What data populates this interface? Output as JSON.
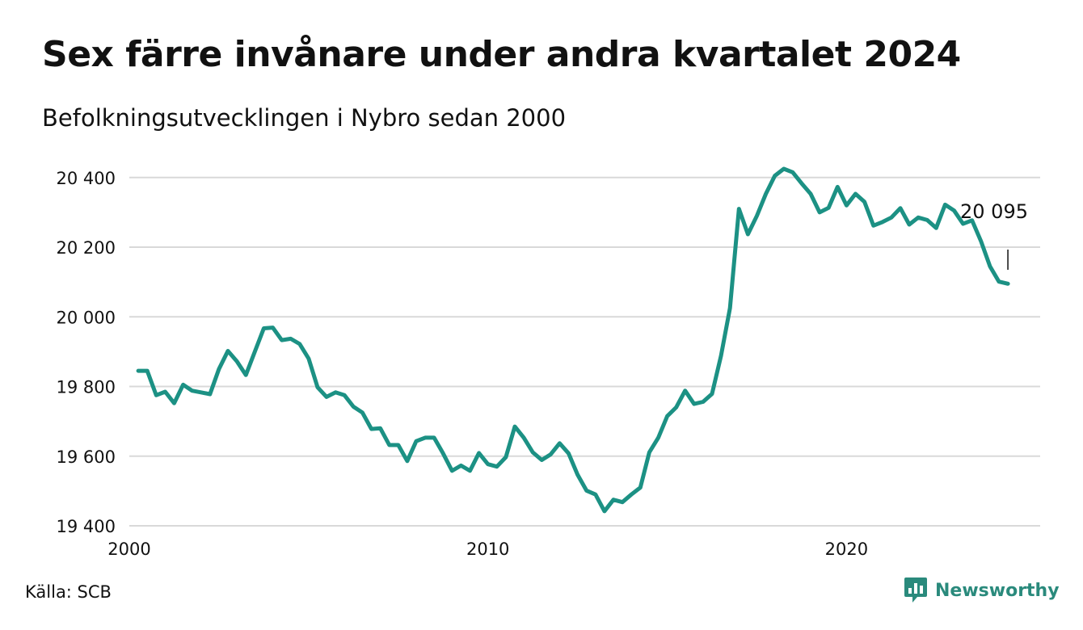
{
  "title": "Sex färre invånare under andra kvartalet 2024",
  "subtitle": "Befolkningsutvecklingen i Nybro sedan 2000",
  "source": "Källa: SCB",
  "brand": "Newsworthy",
  "colors": {
    "line": "#1c9184",
    "grid": "#d9d9d9",
    "brand": "#2a8a7c"
  },
  "chart_data": {
    "type": "line",
    "title": "Sex färre invånare under andra kvartalet 2024",
    "subtitle": "Befolkningsutvecklingen i Nybro sedan 2000",
    "xlabel": "",
    "ylabel": "",
    "xlim": [
      2000,
      2025.4
    ],
    "ylim": [
      19400,
      20420
    ],
    "x_ticks": [
      2000,
      2010,
      2020
    ],
    "x_tick_labels": [
      "2000",
      "2010",
      "2020"
    ],
    "y_ticks": [
      19400,
      19600,
      19800,
      20000,
      20200,
      20400
    ],
    "y_tick_labels": [
      "19 400",
      "19 600",
      "19 800",
      "20 000",
      "20 200",
      "20 400"
    ],
    "grid": true,
    "end_label": "20 095",
    "series": [
      {
        "values": [
          [
            2000.25,
            19845
          ],
          [
            2000.5,
            19845
          ],
          [
            2000.75,
            19775
          ],
          [
            2001.0,
            19785
          ],
          [
            2001.25,
            19752
          ],
          [
            2001.5,
            19805
          ],
          [
            2001.75,
            19788
          ],
          [
            2002.0,
            19783
          ],
          [
            2002.25,
            19778
          ],
          [
            2002.5,
            19850
          ],
          [
            2002.75,
            19902
          ],
          [
            2003.0,
            19872
          ],
          [
            2003.25,
            19833
          ],
          [
            2003.5,
            19900
          ],
          [
            2003.75,
            19967
          ],
          [
            2004.0,
            19969
          ],
          [
            2004.25,
            19933
          ],
          [
            2004.5,
            19937
          ],
          [
            2004.75,
            19922
          ],
          [
            2005.0,
            19880
          ],
          [
            2005.25,
            19798
          ],
          [
            2005.5,
            19770
          ],
          [
            2005.75,
            19783
          ],
          [
            2006.0,
            19775
          ],
          [
            2006.25,
            19742
          ],
          [
            2006.5,
            19725
          ],
          [
            2006.75,
            19678
          ],
          [
            2007.0,
            19680
          ],
          [
            2007.25,
            19632
          ],
          [
            2007.5,
            19632
          ],
          [
            2007.75,
            19586
          ],
          [
            2008.0,
            19643
          ],
          [
            2008.25,
            19653
          ],
          [
            2008.5,
            19653
          ],
          [
            2008.75,
            19608
          ],
          [
            2009.0,
            19558
          ],
          [
            2009.25,
            19573
          ],
          [
            2009.5,
            19558
          ],
          [
            2009.75,
            19609
          ],
          [
            2010.0,
            19577
          ],
          [
            2010.25,
            19570
          ],
          [
            2010.5,
            19597
          ],
          [
            2010.75,
            19685
          ],
          [
            2011.0,
            19653
          ],
          [
            2011.25,
            19611
          ],
          [
            2011.5,
            19589
          ],
          [
            2011.75,
            19605
          ],
          [
            2012.0,
            19637
          ],
          [
            2012.25,
            19608
          ],
          [
            2012.5,
            19547
          ],
          [
            2012.75,
            19501
          ],
          [
            2013.0,
            19490
          ],
          [
            2013.25,
            19442
          ],
          [
            2013.5,
            19475
          ],
          [
            2013.75,
            19468
          ],
          [
            2014.0,
            19490
          ],
          [
            2014.25,
            19510
          ],
          [
            2014.5,
            19611
          ],
          [
            2014.75,
            19653
          ],
          [
            2015.0,
            19715
          ],
          [
            2015.25,
            19740
          ],
          [
            2015.5,
            19788
          ],
          [
            2015.75,
            19750
          ],
          [
            2016.0,
            19756
          ],
          [
            2016.25,
            19779
          ],
          [
            2016.5,
            19888
          ],
          [
            2016.75,
            20025
          ],
          [
            2017.0,
            20310
          ],
          [
            2017.25,
            20237
          ],
          [
            2017.5,
            20290
          ],
          [
            2017.75,
            20353
          ],
          [
            2018.0,
            20405
          ],
          [
            2018.25,
            20425
          ],
          [
            2018.5,
            20415
          ],
          [
            2018.75,
            20383
          ],
          [
            2019.0,
            20353
          ],
          [
            2019.25,
            20300
          ],
          [
            2019.5,
            20313
          ],
          [
            2019.75,
            20373
          ],
          [
            2020.0,
            20320
          ],
          [
            2020.25,
            20353
          ],
          [
            2020.5,
            20330
          ],
          [
            2020.75,
            20262
          ],
          [
            2021.0,
            20272
          ],
          [
            2021.25,
            20285
          ],
          [
            2021.5,
            20312
          ],
          [
            2021.75,
            20265
          ],
          [
            2022.0,
            20285
          ],
          [
            2022.25,
            20278
          ],
          [
            2022.5,
            20255
          ],
          [
            2022.75,
            20322
          ],
          [
            2023.0,
            20305
          ],
          [
            2023.25,
            20267
          ],
          [
            2023.5,
            20277
          ],
          [
            2023.75,
            20217
          ],
          [
            2024.0,
            20145
          ],
          [
            2024.25,
            20101
          ],
          [
            2024.5,
            20095
          ]
        ]
      }
    ]
  }
}
